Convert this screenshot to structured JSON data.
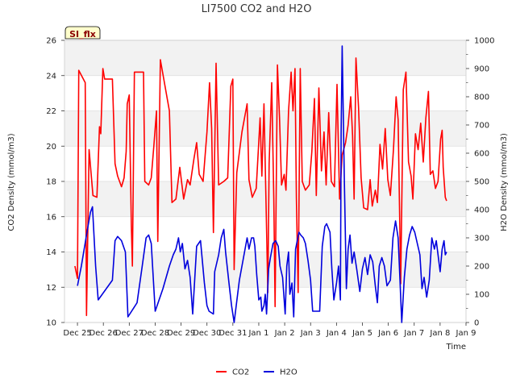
{
  "chart_data": {
    "type": "line",
    "title": "LI7500 CO2 and H2O",
    "xlabel": "Time",
    "ylabel_left": "CO2 Density (mmol/m3)",
    "ylabel_right": "H2O Density (mmol/m3)",
    "badge": "SI_flx",
    "x_range_days": [
      -0.5,
      15.0
    ],
    "x_ticks": [
      "Dec 25",
      "Dec 26",
      "Dec 27",
      "Dec 28",
      "Dec 29",
      "Dec 30",
      "Dec 31",
      "Jan 1",
      "Jan 2",
      "Jan 3",
      "Jan 4",
      "Jan 5",
      "Jan 6",
      "Jan 7",
      "Jan 8",
      "Jan 9"
    ],
    "ylim_left": [
      10,
      26
    ],
    "yticks_left": [
      "10",
      "12",
      "14",
      "16",
      "18",
      "20",
      "22",
      "24",
      "26"
    ],
    "ylim_right": [
      0,
      1000
    ],
    "yticks_right": [
      "0",
      "100",
      "200",
      "300",
      "400",
      "500",
      "600",
      "700",
      "800",
      "900",
      "1000"
    ],
    "grid": true,
    "legend": "bottom-center",
    "series": [
      {
        "name": "CO2",
        "axis": "left",
        "color": "#ff0000",
        "points": [
          [
            -0.1,
            13.2
          ],
          [
            0.0,
            12.5
          ],
          [
            0.05,
            24.3
          ],
          [
            0.3,
            23.6
          ],
          [
            0.35,
            10.4
          ],
          [
            0.45,
            19.8
          ],
          [
            0.6,
            17.2
          ],
          [
            0.75,
            17.1
          ],
          [
            0.85,
            21.1
          ],
          [
            0.9,
            20.7
          ],
          [
            0.98,
            24.4
          ],
          [
            1.05,
            23.8
          ],
          [
            1.35,
            23.8
          ],
          [
            1.45,
            19.0
          ],
          [
            1.55,
            18.3
          ],
          [
            1.7,
            17.7
          ],
          [
            1.8,
            18.2
          ],
          [
            1.88,
            19.7
          ],
          [
            1.92,
            22.4
          ],
          [
            2.0,
            22.9
          ],
          [
            2.08,
            15.5
          ],
          [
            2.12,
            13.2
          ],
          [
            2.2,
            24.2
          ],
          [
            2.55,
            24.2
          ],
          [
            2.6,
            18.0
          ],
          [
            2.75,
            17.8
          ],
          [
            2.85,
            18.2
          ],
          [
            2.95,
            20.0
          ],
          [
            3.05,
            22.0
          ],
          [
            3.1,
            14.6
          ],
          [
            3.2,
            24.9
          ],
          [
            3.55,
            22.0
          ],
          [
            3.65,
            16.8
          ],
          [
            3.8,
            17.0
          ],
          [
            3.95,
            18.8
          ],
          [
            4.1,
            17.0
          ],
          [
            4.25,
            18.1
          ],
          [
            4.35,
            17.8
          ],
          [
            4.5,
            19.3
          ],
          [
            4.6,
            20.2
          ],
          [
            4.7,
            18.4
          ],
          [
            4.85,
            18.0
          ],
          [
            5.0,
            20.8
          ],
          [
            5.1,
            23.6
          ],
          [
            5.18,
            21.0
          ],
          [
            5.25,
            15.1
          ],
          [
            5.35,
            24.7
          ],
          [
            5.45,
            17.8
          ],
          [
            5.65,
            18.0
          ],
          [
            5.8,
            18.2
          ],
          [
            5.92,
            23.4
          ],
          [
            6.0,
            23.8
          ],
          [
            6.05,
            13.0
          ],
          [
            6.15,
            18.5
          ],
          [
            6.35,
            20.8
          ],
          [
            6.55,
            22.4
          ],
          [
            6.62,
            18.1
          ],
          [
            6.75,
            17.1
          ],
          [
            6.9,
            17.6
          ],
          [
            7.05,
            21.6
          ],
          [
            7.12,
            18.3
          ],
          [
            7.2,
            22.4
          ],
          [
            7.28,
            16.7
          ],
          [
            7.35,
            11.7
          ],
          [
            7.4,
            19.0
          ],
          [
            7.5,
            23.6
          ],
          [
            7.58,
            17.0
          ],
          [
            7.63,
            10.9
          ],
          [
            7.72,
            24.6
          ],
          [
            7.8,
            21.6
          ],
          [
            7.88,
            17.8
          ],
          [
            7.98,
            18.4
          ],
          [
            8.05,
            17.5
          ],
          [
            8.15,
            22.0
          ],
          [
            8.25,
            24.2
          ],
          [
            8.32,
            22.0
          ],
          [
            8.4,
            24.4
          ],
          [
            8.45,
            17.1
          ],
          [
            8.52,
            11.7
          ],
          [
            8.6,
            24.4
          ],
          [
            8.68,
            18.0
          ],
          [
            8.8,
            17.5
          ],
          [
            8.95,
            17.8
          ],
          [
            9.05,
            19.7
          ],
          [
            9.15,
            22.7
          ],
          [
            9.22,
            17.2
          ],
          [
            9.32,
            23.3
          ],
          [
            9.42,
            18.6
          ],
          [
            9.52,
            20.8
          ],
          [
            9.6,
            17.8
          ],
          [
            9.7,
            21.9
          ],
          [
            9.8,
            18.0
          ],
          [
            9.92,
            17.7
          ],
          [
            10.02,
            23.5
          ],
          [
            10.12,
            17.0
          ],
          [
            10.22,
            19.5
          ],
          [
            10.35,
            20.2
          ],
          [
            10.45,
            21.2
          ],
          [
            10.55,
            22.8
          ],
          [
            10.62,
            20.6
          ],
          [
            10.68,
            17.0
          ],
          [
            10.75,
            25.0
          ],
          [
            10.85,
            22.2
          ],
          [
            10.95,
            18.2
          ],
          [
            11.05,
            16.5
          ],
          [
            11.2,
            16.4
          ],
          [
            11.3,
            18.1
          ],
          [
            11.38,
            16.6
          ],
          [
            11.5,
            17.5
          ],
          [
            11.58,
            16.8
          ],
          [
            11.68,
            20.1
          ],
          [
            11.78,
            18.7
          ],
          [
            11.88,
            21.0
          ],
          [
            11.98,
            18.1
          ],
          [
            12.08,
            17.2
          ],
          [
            12.2,
            19.8
          ],
          [
            12.3,
            22.8
          ],
          [
            12.38,
            21.5
          ],
          [
            12.48,
            12.2
          ],
          [
            12.58,
            23.2
          ],
          [
            12.68,
            24.2
          ],
          [
            12.78,
            19.1
          ],
          [
            12.88,
            18.3
          ],
          [
            12.95,
            17.0
          ],
          [
            13.05,
            20.7
          ],
          [
            13.15,
            19.8
          ],
          [
            13.25,
            21.3
          ],
          [
            13.35,
            19.1
          ],
          [
            13.45,
            21.6
          ],
          [
            13.55,
            23.1
          ],
          [
            13.62,
            18.4
          ],
          [
            13.72,
            18.6
          ],
          [
            13.82,
            17.6
          ],
          [
            13.92,
            18.0
          ],
          [
            14.02,
            20.4
          ],
          [
            14.08,
            20.9
          ],
          [
            14.12,
            18.8
          ],
          [
            14.2,
            17.1
          ],
          [
            14.25,
            16.9
          ]
        ]
      },
      {
        "name": "H2O",
        "axis": "right",
        "color": "#0000dd",
        "points": [
          [
            0.0,
            130
          ],
          [
            0.15,
            200
          ],
          [
            0.35,
            310
          ],
          [
            0.5,
            390
          ],
          [
            0.58,
            410
          ],
          [
            0.7,
            200
          ],
          [
            0.8,
            80
          ],
          [
            1.35,
            150
          ],
          [
            1.45,
            290
          ],
          [
            1.55,
            305
          ],
          [
            1.7,
            290
          ],
          [
            1.85,
            250
          ],
          [
            1.95,
            20
          ],
          [
            2.3,
            70
          ],
          [
            2.5,
            200
          ],
          [
            2.65,
            300
          ],
          [
            2.75,
            310
          ],
          [
            2.85,
            280
          ],
          [
            3.0,
            40
          ],
          [
            3.3,
            120
          ],
          [
            3.55,
            200
          ],
          [
            3.7,
            240
          ],
          [
            3.8,
            260
          ],
          [
            3.9,
            300
          ],
          [
            3.97,
            250
          ],
          [
            4.05,
            280
          ],
          [
            4.15,
            190
          ],
          [
            4.25,
            220
          ],
          [
            4.35,
            160
          ],
          [
            4.45,
            30
          ],
          [
            4.6,
            270
          ],
          [
            4.75,
            290
          ],
          [
            4.9,
            140
          ],
          [
            5.0,
            60
          ],
          [
            5.08,
            40
          ],
          [
            5.25,
            30
          ],
          [
            5.3,
            180
          ],
          [
            5.45,
            240
          ],
          [
            5.55,
            300
          ],
          [
            5.65,
            330
          ],
          [
            5.72,
            250
          ],
          [
            5.85,
            140
          ],
          [
            5.95,
            60
          ],
          [
            6.05,
            0
          ],
          [
            6.25,
            150
          ],
          [
            6.55,
            300
          ],
          [
            6.62,
            260
          ],
          [
            6.72,
            300
          ],
          [
            6.8,
            300
          ],
          [
            6.85,
            270
          ],
          [
            6.92,
            170
          ],
          [
            7.0,
            80
          ],
          [
            7.08,
            90
          ],
          [
            7.12,
            40
          ],
          [
            7.2,
            60
          ],
          [
            7.25,
            100
          ],
          [
            7.3,
            30
          ],
          [
            7.38,
            190
          ],
          [
            7.45,
            230
          ],
          [
            7.55,
            280
          ],
          [
            7.65,
            290
          ],
          [
            7.75,
            270
          ],
          [
            7.82,
            200
          ],
          [
            7.92,
            160
          ],
          [
            8.02,
            30
          ],
          [
            8.08,
            200
          ],
          [
            8.15,
            250
          ],
          [
            8.2,
            100
          ],
          [
            8.28,
            140
          ],
          [
            8.35,
            20
          ],
          [
            8.42,
            260
          ],
          [
            8.55,
            320
          ],
          [
            8.62,
            310
          ],
          [
            8.72,
            300
          ],
          [
            8.8,
            280
          ],
          [
            8.9,
            220
          ],
          [
            9.0,
            150
          ],
          [
            9.08,
            40
          ],
          [
            9.35,
            40
          ],
          [
            9.45,
            270
          ],
          [
            9.55,
            340
          ],
          [
            9.62,
            350
          ],
          [
            9.75,
            320
          ],
          [
            9.82,
            190
          ],
          [
            9.9,
            80
          ],
          [
            10.0,
            140
          ],
          [
            10.08,
            200
          ],
          [
            10.15,
            80
          ],
          [
            10.18,
            670
          ],
          [
            10.22,
            980
          ],
          [
            10.3,
            520
          ],
          [
            10.38,
            120
          ],
          [
            10.45,
            260
          ],
          [
            10.52,
            310
          ],
          [
            10.6,
            210
          ],
          [
            10.68,
            250
          ],
          [
            10.78,
            190
          ],
          [
            10.9,
            110
          ],
          [
            11.0,
            190
          ],
          [
            11.1,
            230
          ],
          [
            11.2,
            170
          ],
          [
            11.3,
            240
          ],
          [
            11.4,
            215
          ],
          [
            11.5,
            130
          ],
          [
            11.58,
            70
          ],
          [
            11.65,
            200
          ],
          [
            11.75,
            230
          ],
          [
            11.85,
            200
          ],
          [
            11.95,
            130
          ],
          [
            12.08,
            150
          ],
          [
            12.18,
            300
          ],
          [
            12.28,
            360
          ],
          [
            12.38,
            300
          ],
          [
            12.45,
            150
          ],
          [
            12.52,
            0
          ],
          [
            12.62,
            160
          ],
          [
            12.72,
            260
          ],
          [
            12.82,
            310
          ],
          [
            12.92,
            340
          ],
          [
            13.02,
            320
          ],
          [
            13.12,
            280
          ],
          [
            13.22,
            240
          ],
          [
            13.3,
            120
          ],
          [
            13.38,
            160
          ],
          [
            13.48,
            90
          ],
          [
            13.58,
            150
          ],
          [
            13.68,
            300
          ],
          [
            13.78,
            260
          ],
          [
            13.85,
            290
          ],
          [
            13.92,
            240
          ],
          [
            14.0,
            180
          ],
          [
            14.08,
            260
          ],
          [
            14.15,
            290
          ],
          [
            14.2,
            240
          ],
          [
            14.25,
            250
          ]
        ]
      }
    ]
  }
}
